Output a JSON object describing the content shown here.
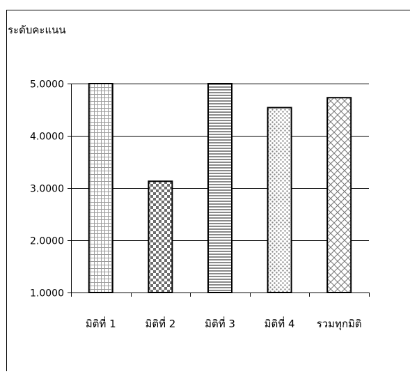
{
  "chart_data": {
    "type": "bar",
    "ylabel": "ระดับคะแนน",
    "categories": [
      "มิติที่ 1",
      "มิติที่ 2",
      "มิติที่ 3",
      "มิติที่ 4",
      "รวมทุกมิติ"
    ],
    "values": [
      5.0,
      3.13,
      5.0,
      4.54,
      4.73
    ],
    "ylim": [
      1,
      5
    ],
    "yticks": [
      "1.0000",
      "2.0000",
      "3.0000",
      "4.0000",
      "5.0000"
    ],
    "grid": true,
    "legend": "none",
    "patterns": [
      "grid",
      "checker",
      "horizontal-stripes",
      "dots",
      "crosshatch"
    ],
    "colors": {
      "bar_outline": "#000000",
      "pattern_ink": "#8a8a8a",
      "checker_ink": "#6e6e6e",
      "background": "#ffffff"
    }
  }
}
